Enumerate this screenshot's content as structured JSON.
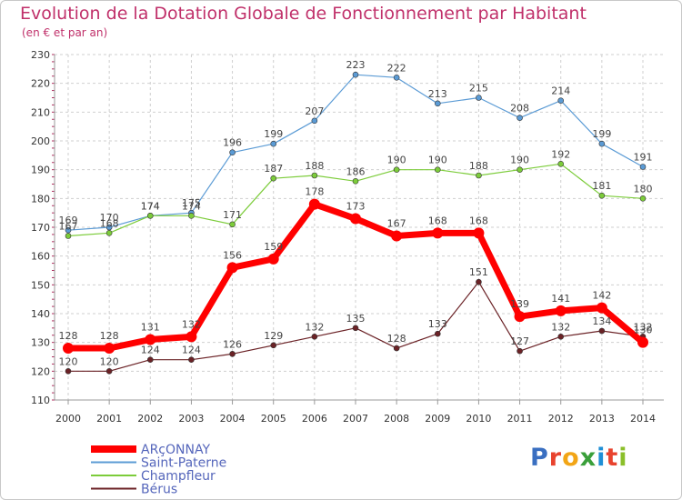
{
  "title": "Evolution de la Dotation Globale de Fonctionnement par Habitant",
  "subtitle": "(en € et par an)",
  "logo": {
    "text": "Proxiti",
    "colors": [
      "#3a6fc1",
      "#e8432e",
      "#f2a516",
      "#3a9f3a",
      "#1f8fd6",
      "#e8432e",
      "#8bbf2a"
    ]
  },
  "chart_data": {
    "type": "line",
    "x": [
      "2000",
      "2001",
      "2002",
      "2003",
      "2004",
      "2005",
      "2006",
      "2007",
      "2008",
      "2009",
      "2010",
      "2011",
      "2012",
      "2013",
      "2014"
    ],
    "ylim": [
      110,
      230
    ],
    "yticks": [
      110,
      120,
      130,
      140,
      150,
      160,
      170,
      180,
      190,
      200,
      210,
      220,
      230
    ],
    "grid": true,
    "legend_position": "bottom-left",
    "series": [
      {
        "name": "Saint-Paterne",
        "color": "#5b9bd5",
        "values": [
          169,
          170,
          174,
          175,
          196,
          199,
          207,
          223,
          222,
          213,
          215,
          208,
          214,
          199,
          191
        ]
      },
      {
        "name": "Champfleur",
        "color": "#7ccc3a",
        "values": [
          167,
          168,
          174,
          174,
          171,
          187,
          188,
          186,
          190,
          190,
          188,
          190,
          192,
          181,
          180
        ]
      },
      {
        "name": "Bérus",
        "color": "#6b2226",
        "values": [
          120,
          120,
          124,
          124,
          126,
          129,
          132,
          135,
          128,
          133,
          151,
          127,
          132,
          134,
          132
        ]
      },
      {
        "name": "ARçONNAY",
        "color": "#ff0000",
        "values": [
          128,
          128,
          131,
          132,
          156,
          159,
          178,
          173,
          167,
          168,
          168,
          139,
          141,
          142,
          130
        ]
      }
    ],
    "legend_order": [
      "ARçONNAY",
      "Saint-Paterne",
      "Champfleur",
      "Bérus"
    ]
  }
}
